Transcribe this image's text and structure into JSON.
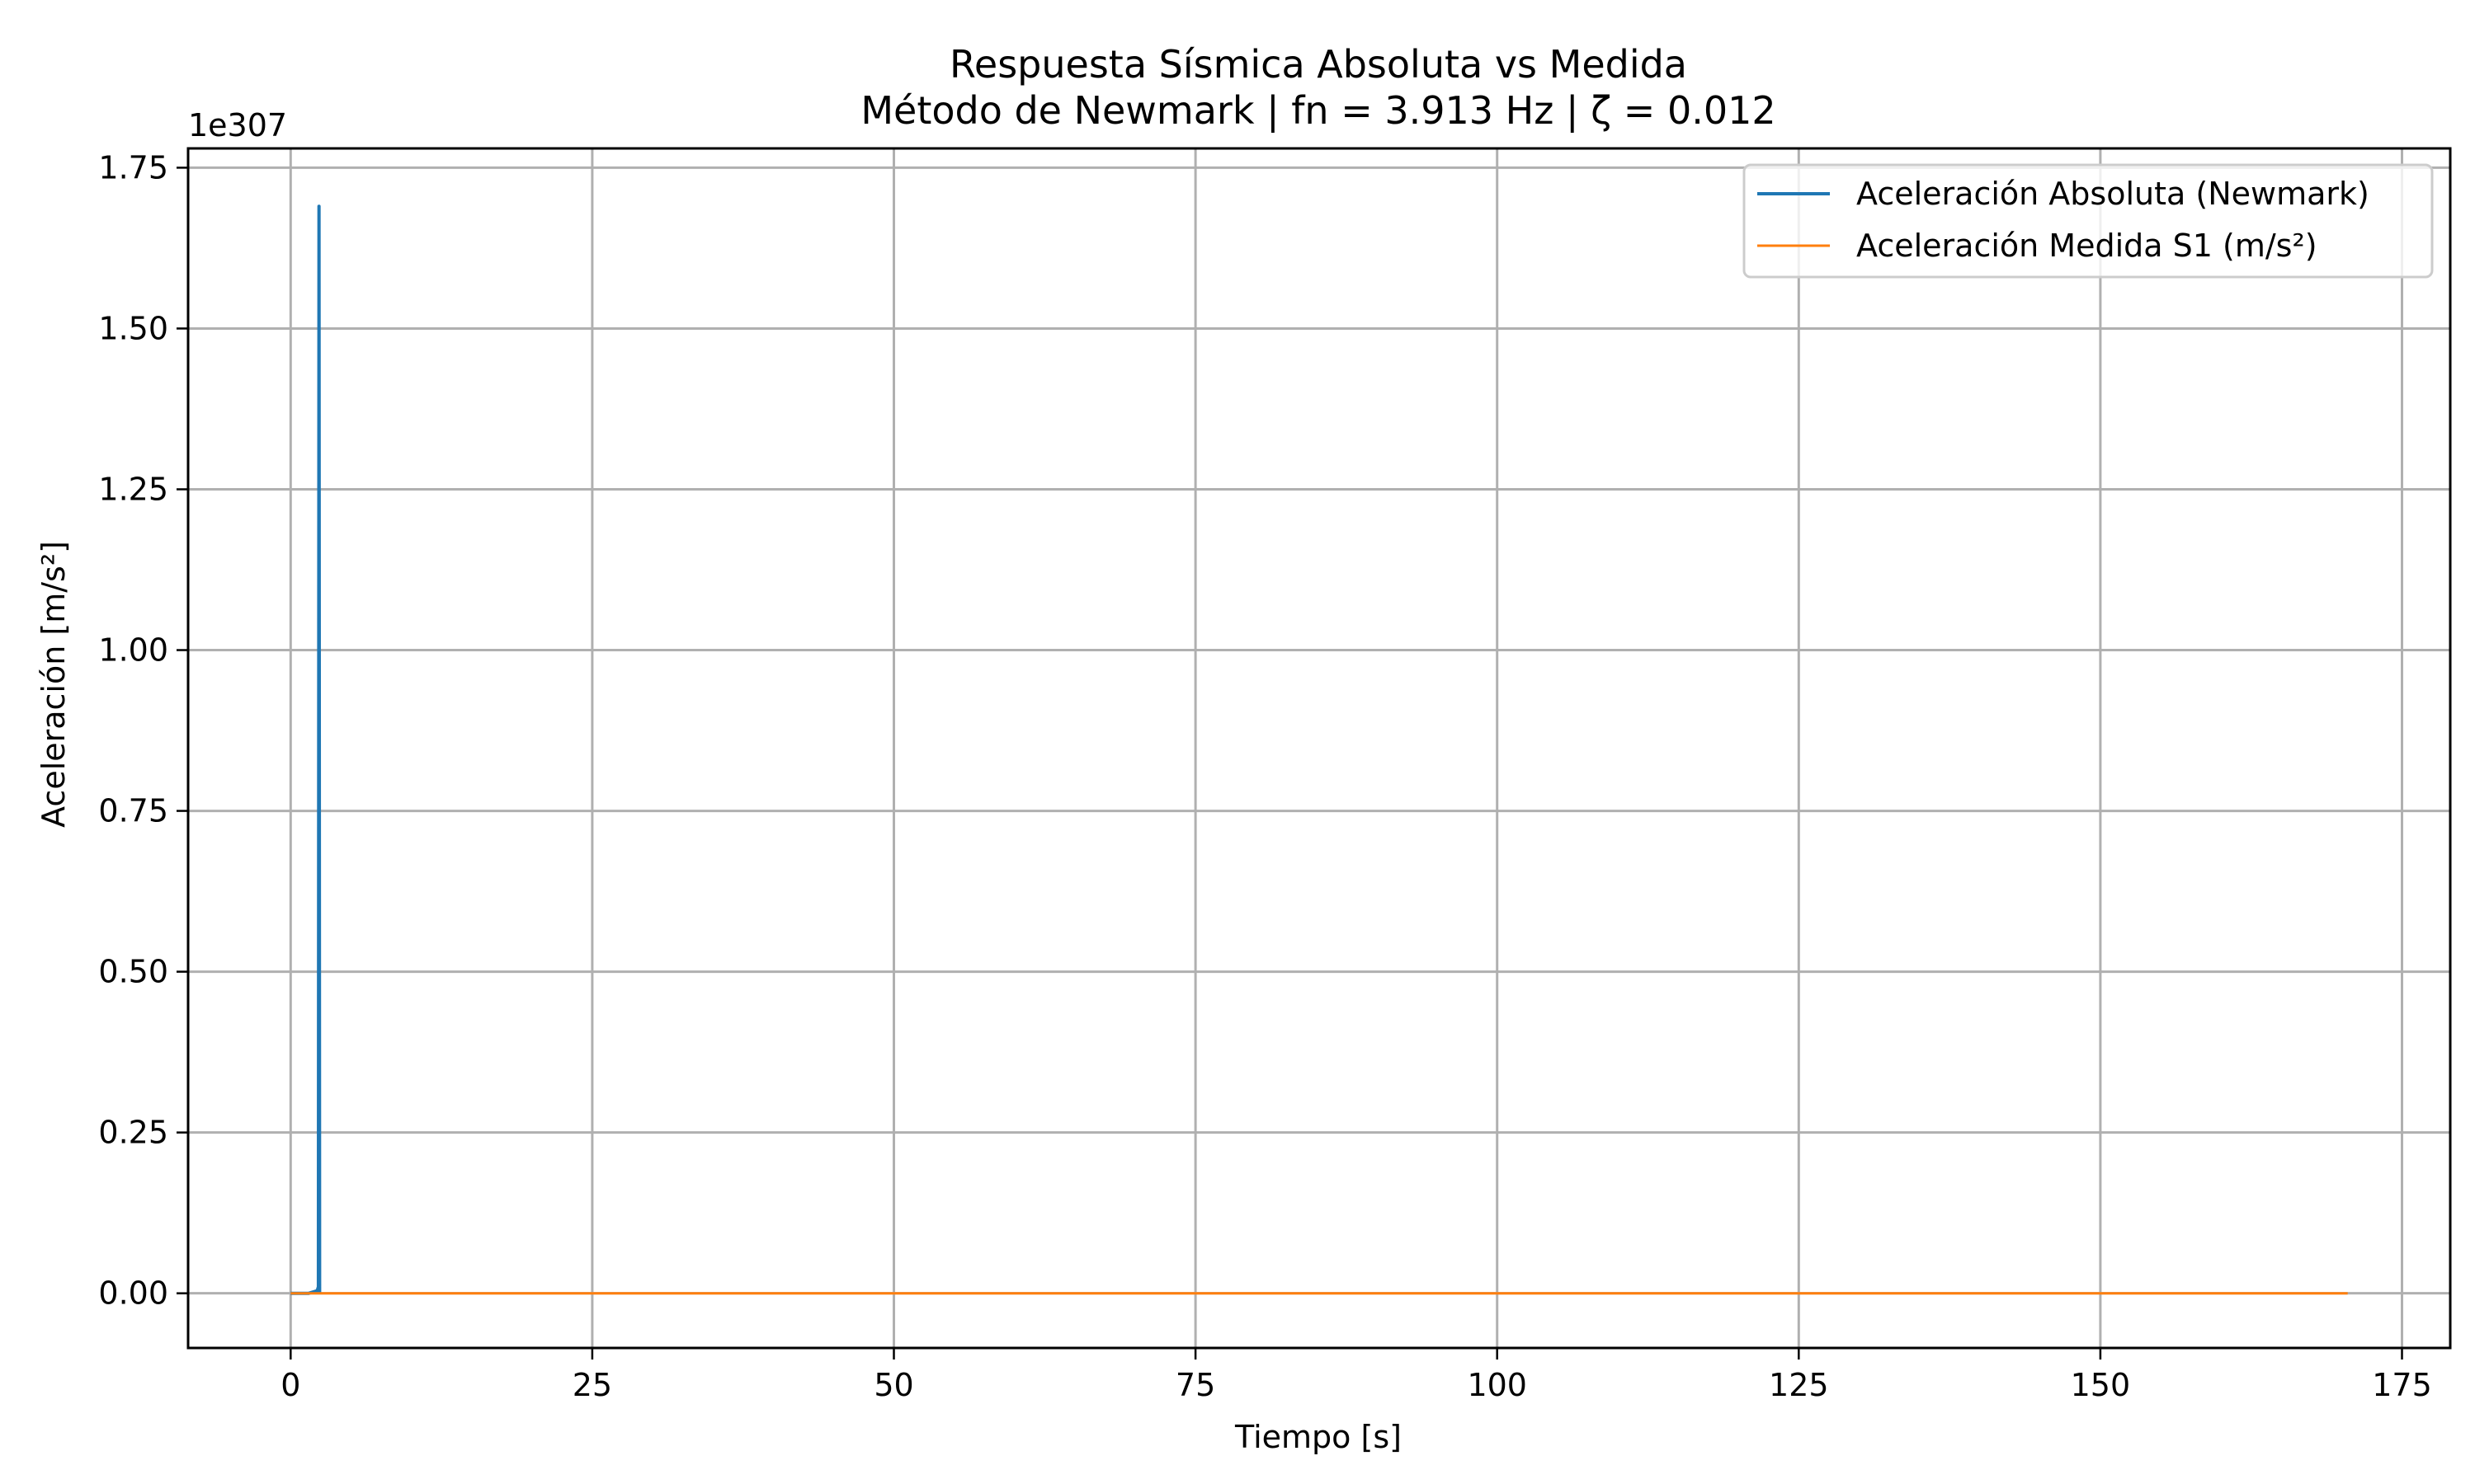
{
  "chart_data": {
    "type": "line",
    "title": "Respuesta Sísmica Absoluta vs Medida",
    "subtitle": "Método de Newmark | fn = 3.913 Hz | ζ = 0.012",
    "xlabel": "Tiempo [s]",
    "ylabel": "Aceleración [m/s²]",
    "y_offset_text": "1e307",
    "y_scale_exponent": 307,
    "xlim": [
      -8.5,
      179
    ],
    "ylim": [
      -0.085,
      1.78
    ],
    "x_ticks": [
      0,
      25,
      50,
      75,
      100,
      125,
      150,
      175
    ],
    "x_tick_labels": [
      "0",
      "25",
      "50",
      "75",
      "100",
      "125",
      "150",
      "175"
    ],
    "y_ticks": [
      0.0,
      0.25,
      0.5,
      0.75,
      1.0,
      1.25,
      1.5,
      1.75
    ],
    "y_tick_labels": [
      "0.00",
      "0.25",
      "0.50",
      "0.75",
      "1.00",
      "1.25",
      "1.50",
      "1.75"
    ],
    "grid": true,
    "legend_position": "top-right",
    "series": [
      {
        "name": "Aceleración Absoluta (Newmark)",
        "color": "#1f77b4",
        "x": [
          0,
          1.5,
          2.2,
          2.3,
          2.35,
          2.4
        ],
        "y": [
          0,
          0,
          0.004,
          0.01,
          1.69,
          0
        ]
      },
      {
        "name": "Aceleración Medida S1 (m/s²)",
        "color": "#ff7f0e",
        "x": [
          0,
          170.5
        ],
        "y": [
          0,
          0
        ]
      }
    ]
  }
}
